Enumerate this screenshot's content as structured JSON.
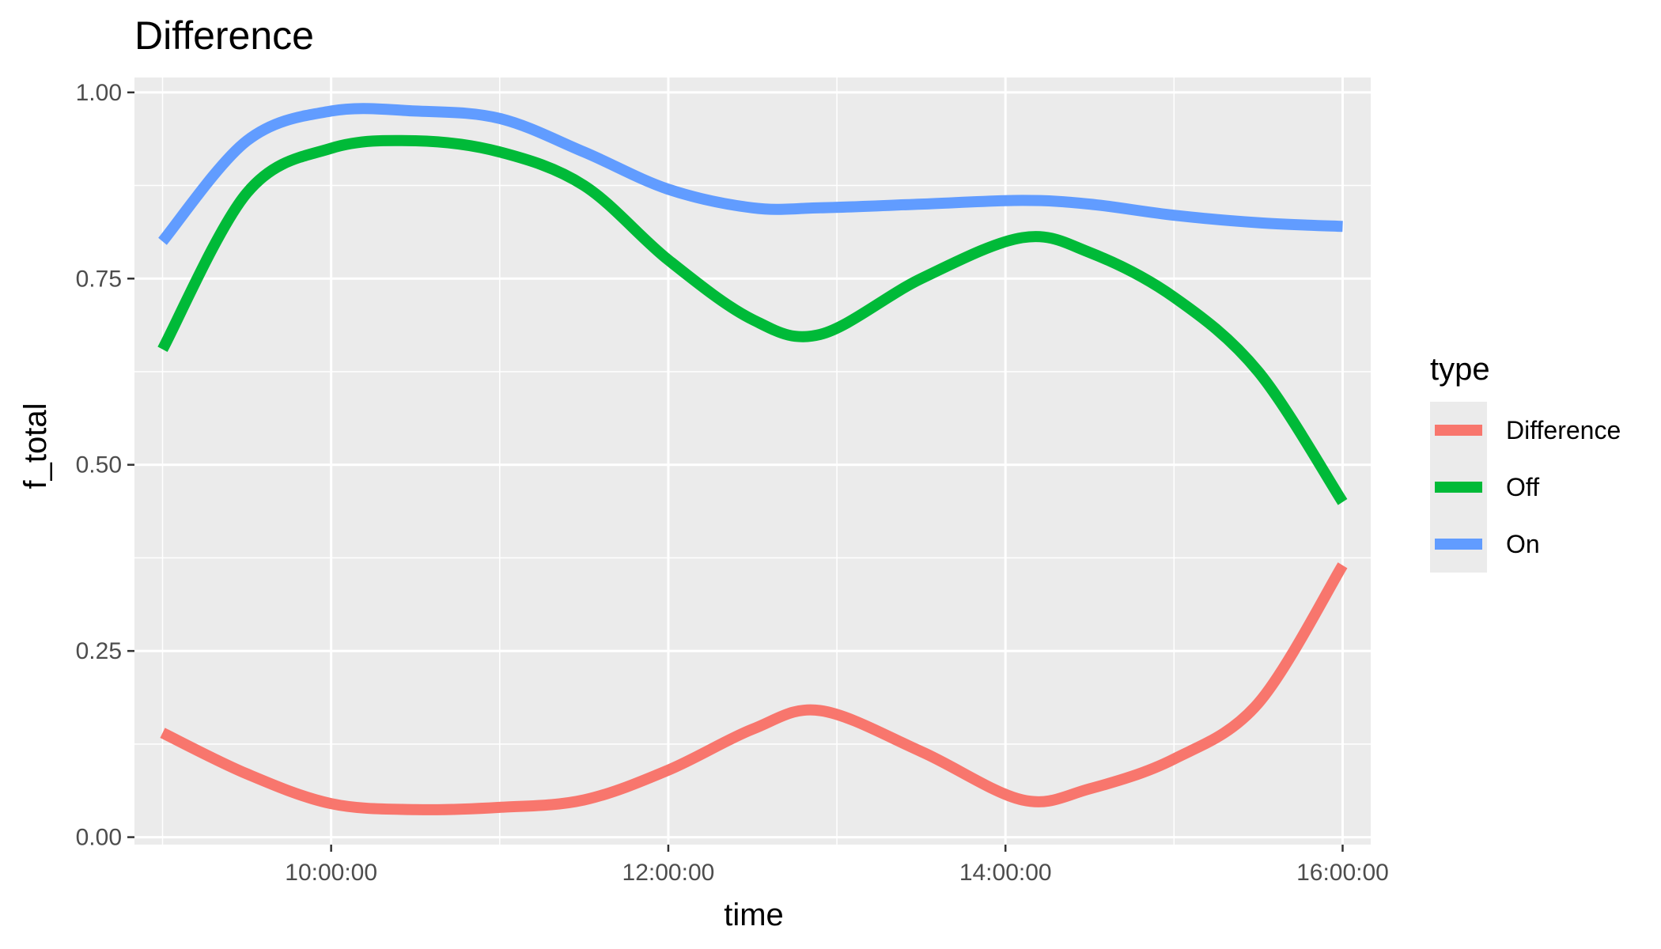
{
  "chart_data": {
    "type": "line",
    "title": "Difference",
    "xlabel": "time",
    "ylabel": "f_total",
    "x": [
      "09:00:00",
      "09:30:00",
      "10:00:00",
      "10:30:00",
      "11:00:00",
      "11:30:00",
      "12:00:00",
      "12:30:00",
      "12:54:00",
      "13:30:00",
      "14:06:00",
      "14:30:00",
      "15:00:00",
      "15:30:00",
      "16:00:00"
    ],
    "xlim": [
      "08:50:00",
      "16:10:00"
    ],
    "xticks": [
      "10:00:00",
      "12:00:00",
      "14:00:00",
      "16:00:00"
    ],
    "ylim": [
      -0.01,
      1.02
    ],
    "yticks": [
      "0.00",
      "0.25",
      "0.50",
      "0.75",
      "1.00"
    ],
    "grid": true,
    "legend": {
      "title": "type",
      "placement": "right"
    },
    "series": [
      {
        "name": "Difference",
        "color": "#F8766D",
        "values": [
          0.14,
          0.085,
          0.045,
          0.037,
          0.04,
          0.05,
          0.09,
          0.145,
          0.17,
          0.115,
          0.05,
          0.065,
          0.105,
          0.18,
          0.365
        ]
      },
      {
        "name": "Off",
        "color": "#00BA38",
        "values": [
          0.655,
          0.865,
          0.925,
          0.935,
          0.92,
          0.875,
          0.775,
          0.695,
          0.675,
          0.75,
          0.805,
          0.785,
          0.725,
          0.625,
          0.45
        ]
      },
      {
        "name": "On",
        "color": "#619CFF",
        "values": [
          0.8,
          0.935,
          0.975,
          0.975,
          0.965,
          0.92,
          0.87,
          0.845,
          0.845,
          0.85,
          0.855,
          0.85,
          0.835,
          0.825,
          0.82
        ]
      }
    ]
  }
}
